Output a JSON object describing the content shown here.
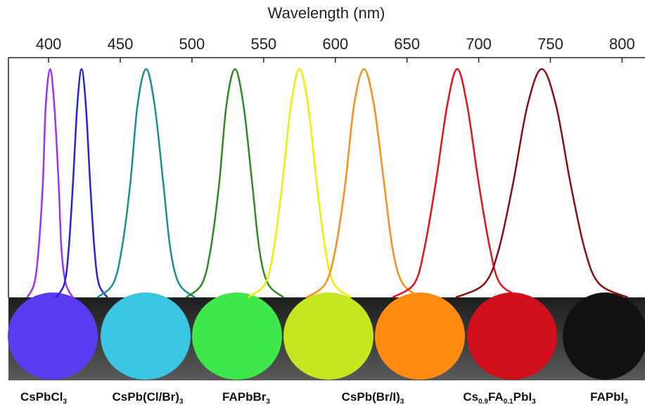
{
  "chart_data": {
    "type": "line",
    "x_label": "Wavelength (nm)",
    "xlim": [
      372,
      816
    ],
    "xticks": [
      400,
      450,
      500,
      550,
      600,
      650,
      700,
      750,
      800
    ],
    "ylim": [
      0,
      1.05
    ],
    "series": [
      {
        "color": "#9b30ff",
        "x": [
          385,
          390,
          393,
          396,
          398,
          401,
          404,
          407,
          409,
          412,
          417
        ],
        "values": [
          0,
          0.06,
          0.21,
          0.5,
          0.84,
          1,
          0.84,
          0.5,
          0.21,
          0.06,
          0
        ]
      },
      {
        "color": "#2323dd",
        "x": [
          405,
          411,
          414,
          417,
          420,
          423,
          426,
          429,
          432,
          435,
          441
        ],
        "values": [
          0,
          0.06,
          0.21,
          0.5,
          0.84,
          1,
          0.84,
          0.5,
          0.21,
          0.06,
          0
        ]
      },
      {
        "color": "#1a8f8f",
        "x": [
          434,
          445,
          451,
          457,
          462,
          468,
          474,
          480,
          485,
          491,
          502
        ],
        "values": [
          0,
          0.06,
          0.21,
          0.5,
          0.84,
          1,
          0.84,
          0.5,
          0.21,
          0.06,
          0
        ]
      },
      {
        "color": "#2e8b22",
        "x": [
          496,
          507,
          513,
          519,
          524,
          530,
          536,
          542,
          547,
          553,
          564
        ],
        "values": [
          0,
          0.06,
          0.21,
          0.5,
          0.84,
          1,
          0.84,
          0.5,
          0.21,
          0.06,
          0
        ]
      },
      {
        "color": "#f2ee00",
        "x": [
          539,
          551,
          557,
          563,
          569,
          575,
          581,
          587,
          593,
          599,
          611
        ],
        "values": [
          0,
          0.06,
          0.21,
          0.5,
          0.84,
          1,
          0.84,
          0.5,
          0.21,
          0.06,
          0
        ]
      },
      {
        "color": "#ff8c1a",
        "x": [
          580,
          593,
          600,
          607,
          613,
          620,
          627,
          634,
          640,
          647,
          660
        ],
        "values": [
          0,
          0.06,
          0.21,
          0.5,
          0.84,
          1,
          0.84,
          0.5,
          0.21,
          0.06,
          0
        ]
      },
      {
        "color": "#e8101a",
        "x": [
          640,
          655,
          662,
          670,
          678,
          685,
          692,
          700,
          708,
          715,
          730
        ],
        "values": [
          0,
          0.06,
          0.21,
          0.5,
          0.84,
          1,
          0.84,
          0.5,
          0.21,
          0.06,
          0
        ]
      },
      {
        "color": "#8b0f0f",
        "x": [
          684,
          704,
          714,
          724,
          734,
          744,
          754,
          764,
          774,
          784,
          804
        ],
        "values": [
          0,
          0.06,
          0.21,
          0.5,
          0.84,
          1,
          0.84,
          0.5,
          0.21,
          0.06,
          0
        ]
      }
    ]
  },
  "photo_labels": [
    [
      "CsPbCl",
      "3"
    ],
    [
      "CsPb(Cl/Br)",
      "3"
    ],
    [
      "FAPbBr",
      "3"
    ],
    [
      "CsPb(Br/I)",
      "3"
    ],
    [
      "Cs",
      "0.9",
      "FA",
      "0.1",
      "PbI",
      "3"
    ],
    [
      "FAPbI",
      "3"
    ]
  ]
}
